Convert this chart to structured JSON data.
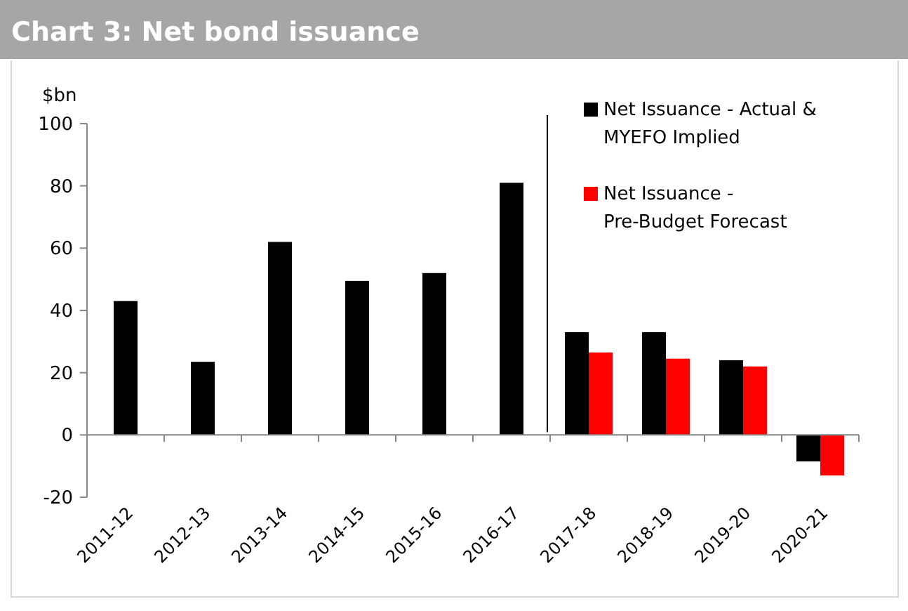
{
  "chart_data": {
    "type": "bar",
    "title": "Chart 3: Net bond issuance",
    "ylabel": "$bn",
    "categories": [
      "2011-12",
      "2012-13",
      "2013-14",
      "2014-15",
      "2015-16",
      "2016-17",
      "2017-18",
      "2018-19",
      "2019-20",
      "2020-21"
    ],
    "series": [
      {
        "name": "Net Issuance - Actual & MYEFO Implied",
        "color": "#000000",
        "values": [
          43,
          23.5,
          62,
          49.5,
          52,
          81,
          33,
          33,
          24,
          -8.5
        ]
      },
      {
        "name": "Net Issuance - Pre-Budget Forecast",
        "color": "#ff0000",
        "values": [
          null,
          null,
          null,
          null,
          null,
          null,
          26.5,
          24.5,
          22,
          -13
        ]
      }
    ],
    "ylim": [
      -20,
      100
    ],
    "yticks": [
      -20,
      0,
      20,
      40,
      60,
      80,
      100
    ],
    "legend": "top right",
    "ref_lines": [
      {
        "axis": "x",
        "value": "2017-18",
        "color": "#000000"
      }
    ]
  }
}
